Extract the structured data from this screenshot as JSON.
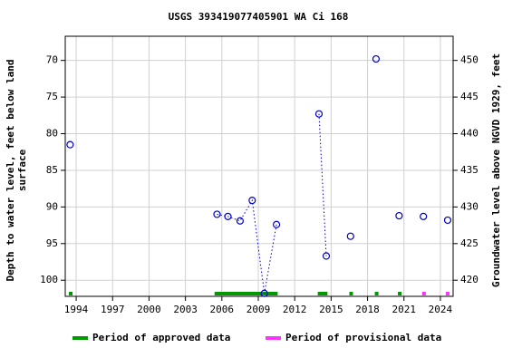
{
  "chart_data": {
    "type": "scatter",
    "title": "USGS 393419077405901 WA Ci 168",
    "ylabel": [
      "Depth to water level, feet below land",
      "surface"
    ],
    "y2label": "Groundwater level above NGVD 1929, feet",
    "xlim": [
      1993.1,
      2025.05
    ],
    "ylim": [
      102.2,
      66.7
    ],
    "y2lim": [
      417.8,
      453.3
    ],
    "xticks": [
      1994,
      1997,
      2000,
      2003,
      2006,
      2009,
      2012,
      2015,
      2018,
      2021,
      2024
    ],
    "yticks": [
      70,
      75,
      80,
      85,
      90,
      95,
      100
    ],
    "y2ticks": [
      420,
      425,
      430,
      435,
      440,
      445,
      450
    ],
    "grid": true,
    "color": "#0000cc",
    "series": [
      {
        "x": [
          1993.5
        ],
        "values": [
          81.5
        ]
      },
      {
        "x": [
          2005.6,
          2006.5,
          2007.5,
          2008.5,
          2009.5,
          2010.5
        ],
        "values": [
          91.0,
          91.3,
          91.9,
          89.1,
          101.8,
          92.4
        ]
      },
      {
        "x": [
          2014.0,
          2014.6
        ],
        "values": [
          77.3,
          96.7
        ]
      },
      {
        "x": [
          2016.6
        ],
        "values": [
          94.0
        ]
      },
      {
        "x": [
          2018.7
        ],
        "values": [
          69.8
        ]
      },
      {
        "x": [
          2020.6
        ],
        "values": [
          91.2
        ]
      },
      {
        "x": [
          2022.6
        ],
        "values": [
          91.3
        ]
      },
      {
        "x": [
          2024.6
        ],
        "values": [
          91.8
        ]
      }
    ],
    "periods": [
      {
        "name": "Period of approved data",
        "color": "#009900",
        "ranges": [
          [
            1993.4,
            1993.7
          ],
          [
            2005.4,
            2010.6
          ],
          [
            2013.9,
            2014.7
          ],
          [
            2016.5,
            2016.8
          ],
          [
            2018.6,
            2018.9
          ],
          [
            2020.5,
            2020.8
          ]
        ]
      },
      {
        "name": "Period of provisional data",
        "color": "#ff33ff",
        "ranges": [
          [
            2022.5,
            2022.8
          ],
          [
            2024.45,
            2024.75
          ]
        ]
      }
    ]
  }
}
